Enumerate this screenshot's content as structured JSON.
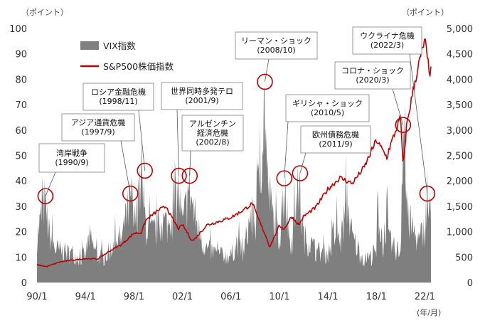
{
  "chart_data": {
    "type": "area",
    "y_left_unit": "（ポイント）",
    "y_right_unit": "（ポイント）",
    "x_unit": "(年/月)",
    "xlim": [
      1990.0,
      2022.5
    ],
    "ylim_left": [
      0,
      100
    ],
    "ylim_right": [
      0,
      5000
    ],
    "x_ticks": [
      {
        "value": 1990,
        "label": "90/1"
      },
      {
        "value": 1994,
        "label": "94/1"
      },
      {
        "value": 1998,
        "label": "98/1"
      },
      {
        "value": 2002,
        "label": "02/1"
      },
      {
        "value": 2006,
        "label": "06/1"
      },
      {
        "value": 2010,
        "label": "10/1"
      },
      {
        "value": 2014,
        "label": "14/1"
      },
      {
        "value": 2018,
        "label": "18/1"
      },
      {
        "value": 2022,
        "label": "22/1"
      }
    ],
    "y_left_ticks": [
      0,
      10,
      20,
      30,
      40,
      50,
      60,
      70,
      80,
      90,
      100
    ],
    "y_right_ticks": [
      {
        "value": 0,
        "label": "0"
      },
      {
        "value": 500,
        "label": "500"
      },
      {
        "value": 1000,
        "label": "1,000"
      },
      {
        "value": 1500,
        "label": "1,500"
      },
      {
        "value": 2000,
        "label": "2,000"
      },
      {
        "value": 2500,
        "label": "2,500"
      },
      {
        "value": 3000,
        "label": "3,000"
      },
      {
        "value": 3500,
        "label": "3,500"
      },
      {
        "value": 4000,
        "label": "4,000"
      },
      {
        "value": 4500,
        "label": "4,500"
      },
      {
        "value": 5000,
        "label": "5,000"
      }
    ],
    "legend_position": "top-left",
    "series": [
      {
        "name": "VIX指数",
        "axis": "left",
        "kind": "area",
        "color": "#7f7f7f",
        "points": [
          [
            1990.0,
            20
          ],
          [
            1990.6,
            36
          ],
          [
            1990.8,
            30
          ],
          [
            1991.0,
            22
          ],
          [
            1991.5,
            15
          ],
          [
            1992.0,
            14
          ],
          [
            1992.5,
            13
          ],
          [
            1993.0,
            13
          ],
          [
            1993.5,
            11
          ],
          [
            1994.0,
            12
          ],
          [
            1994.3,
            20
          ],
          [
            1995.0,
            12
          ],
          [
            1995.5,
            11
          ],
          [
            1996.0,
            14
          ],
          [
            1996.5,
            18
          ],
          [
            1997.0,
            20
          ],
          [
            1997.8,
            38
          ],
          [
            1998.0,
            25
          ],
          [
            1998.6,
            44
          ],
          [
            1998.9,
            30
          ],
          [
            1999.0,
            25
          ],
          [
            1999.5,
            22
          ],
          [
            2000.0,
            24
          ],
          [
            2000.5,
            27
          ],
          [
            2001.0,
            25
          ],
          [
            2001.7,
            42
          ],
          [
            2002.0,
            25
          ],
          [
            2002.6,
            42
          ],
          [
            2003.0,
            30
          ],
          [
            2003.5,
            20
          ],
          [
            2004.0,
            15
          ],
          [
            2005.0,
            12
          ],
          [
            2006.0,
            12
          ],
          [
            2006.5,
            18
          ],
          [
            2007.0,
            12
          ],
          [
            2007.6,
            30
          ],
          [
            2008.0,
            25
          ],
          [
            2008.8,
            80
          ],
          [
            2009.0,
            45
          ],
          [
            2009.5,
            28
          ],
          [
            2010.0,
            20
          ],
          [
            2010.4,
            42
          ],
          [
            2010.8,
            22
          ],
          [
            2011.0,
            18
          ],
          [
            2011.6,
            44
          ],
          [
            2012.0,
            20
          ],
          [
            2012.5,
            18
          ],
          [
            2013.0,
            14
          ],
          [
            2014.0,
            13
          ],
          [
            2014.8,
            24
          ],
          [
            2015.0,
            16
          ],
          [
            2015.6,
            38
          ],
          [
            2016.0,
            20
          ],
          [
            2017.0,
            10
          ],
          [
            2018.0,
            13
          ],
          [
            2018.1,
            36
          ],
          [
            2018.5,
            13
          ],
          [
            2018.9,
            34
          ],
          [
            2019.0,
            18
          ],
          [
            2019.5,
            15
          ],
          [
            2020.0,
            14
          ],
          [
            2020.2,
            82
          ],
          [
            2020.5,
            30
          ],
          [
            2021.0,
            24
          ],
          [
            2021.5,
            18
          ],
          [
            2022.0,
            25
          ],
          [
            2022.2,
            35
          ],
          [
            2022.5,
            28
          ]
        ]
      },
      {
        "name": "S&P500株価指数",
        "axis": "right",
        "kind": "line",
        "color": "#c00000",
        "points": [
          [
            1990.0,
            350
          ],
          [
            1990.8,
            310
          ],
          [
            1991.0,
            330
          ],
          [
            1992.0,
            410
          ],
          [
            1993.0,
            440
          ],
          [
            1994.0,
            470
          ],
          [
            1995.0,
            460
          ],
          [
            1996.0,
            620
          ],
          [
            1997.0,
            750
          ],
          [
            1998.0,
            970
          ],
          [
            1998.6,
            980
          ],
          [
            1999.0,
            1230
          ],
          [
            2000.0,
            1420
          ],
          [
            2000.7,
            1500
          ],
          [
            2001.0,
            1320
          ],
          [
            2001.7,
            1050
          ],
          [
            2002.0,
            1140
          ],
          [
            2002.8,
            820
          ],
          [
            2003.0,
            850
          ],
          [
            2004.0,
            1130
          ],
          [
            2005.0,
            1200
          ],
          [
            2006.0,
            1280
          ],
          [
            2007.0,
            1420
          ],
          [
            2007.8,
            1560
          ],
          [
            2008.0,
            1400
          ],
          [
            2008.9,
            900
          ],
          [
            2009.2,
            700
          ],
          [
            2010.0,
            1120
          ],
          [
            2010.4,
            1050
          ],
          [
            2011.0,
            1300
          ],
          [
            2011.6,
            1130
          ],
          [
            2012.0,
            1300
          ],
          [
            2013.0,
            1480
          ],
          [
            2014.0,
            1840
          ],
          [
            2015.0,
            2060
          ],
          [
            2016.0,
            1950
          ],
          [
            2017.0,
            2270
          ],
          [
            2018.0,
            2800
          ],
          [
            2018.9,
            2450
          ],
          [
            2019.0,
            2600
          ],
          [
            2020.0,
            3250
          ],
          [
            2020.2,
            2240
          ],
          [
            2020.5,
            3100
          ],
          [
            2021.0,
            3750
          ],
          [
            2021.5,
            4300
          ],
          [
            2022.0,
            4770
          ],
          [
            2022.2,
            4400
          ],
          [
            2022.4,
            4150
          ]
        ]
      }
    ],
    "annotations": [
      {
        "lines": [
          "湾岸戦争",
          "(1990/9)"
        ],
        "circle": [
          1990.7,
          34
        ],
        "box": "wangan"
      },
      {
        "lines": [
          "アジア通貨危機",
          "(1997/9)"
        ],
        "circle": [
          1997.7,
          35
        ],
        "box": "asia"
      },
      {
        "lines": [
          "ロシア金融危機",
          "(1998/11)"
        ],
        "circle": [
          1998.9,
          44
        ],
        "box": "russia"
      },
      {
        "lines": [
          "世界同時多発テロ",
          "(2001/9)"
        ],
        "circle": [
          2001.7,
          42
        ],
        "box": "terror"
      },
      {
        "lines": [
          "アルゼンチン",
          "経済危機",
          "(2002/8)"
        ],
        "circle": [
          2002.6,
          42
        ],
        "box": "argentina"
      },
      {
        "lines": [
          "リーマン・ショック",
          "(2008/10)"
        ],
        "circle": [
          2008.8,
          79
        ],
        "box": "lehman"
      },
      {
        "lines": [
          "ギリシャ・ショック",
          "(2010/5)"
        ],
        "circle": [
          2010.4,
          41
        ],
        "box": "greece"
      },
      {
        "lines": [
          "欧州債務危機",
          "(2011/9)"
        ],
        "circle": [
          2011.7,
          43
        ],
        "box": "euro"
      },
      {
        "lines": [
          "コロナ・ショック",
          "(2020/3)"
        ],
        "circle": [
          2020.2,
          62
        ],
        "box": "corona"
      },
      {
        "lines": [
          "ウクライナ危機",
          "(2022/3)"
        ],
        "circle": [
          2022.2,
          35
        ],
        "box": "ukraine"
      }
    ]
  }
}
